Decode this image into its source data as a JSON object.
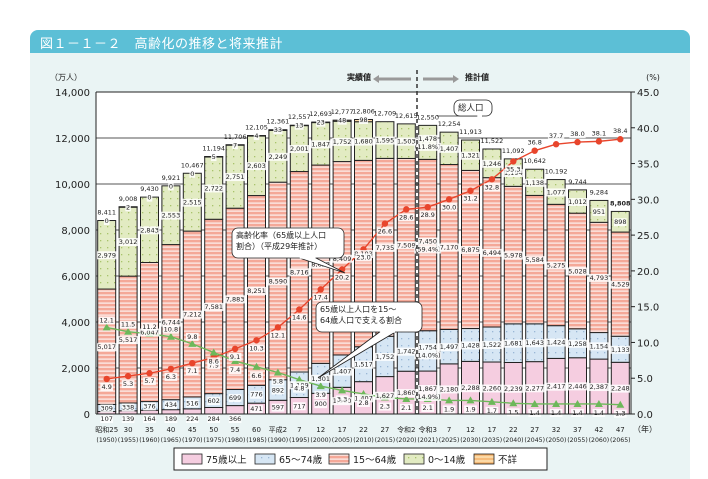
{
  "figure": {
    "title": "図１－１－２　高齢化の推移と将来推計"
  },
  "chart_data": {
    "type": "bar",
    "title": "図１－１－２　高齢化の推移と将来推計",
    "ylabel_left": "（万人）",
    "ylabel_right": "(%)",
    "xlabel_unit": "（年）",
    "ylim_left": [
      0,
      14000
    ],
    "ylim_right": [
      0,
      45
    ],
    "yticks_left": [
      "0",
      "2,000",
      "4,000",
      "6,000",
      "8,000",
      "10,000",
      "12,000",
      "14,000"
    ],
    "yticks_right": [
      "0.0",
      "5.0",
      "10.0",
      "15.0",
      "20.0",
      "25.0",
      "30.0",
      "35.0",
      "40.0",
      "45.0"
    ],
    "grid": true,
    "legend_position": "bottom",
    "categories": [
      "昭和25",
      "30",
      "35",
      "40",
      "45",
      "50",
      "55",
      "60",
      "平成2",
      "7",
      "12",
      "17",
      "22",
      "27",
      "令和2",
      "令和3",
      "7",
      "12",
      "17",
      "22",
      "27",
      "32",
      "37",
      "42",
      "47"
    ],
    "category_years": [
      "(1950)",
      "(1955)",
      "(1960)",
      "(1965)",
      "(1970)",
      "(1975)",
      "(1980)",
      "(1985)",
      "(1990)",
      "(1995)",
      "(2000)",
      "(2005)",
      "(2010)",
      "(2015)",
      "(2020)",
      "(2021)",
      "(2025)",
      "(2030)",
      "(2035)",
      "(2040)",
      "(2045)",
      "(2050)",
      "(2055)",
      "(2060)",
      "(2065)"
    ],
    "series": [
      {
        "name": "75歳以上",
        "type": "bar",
        "color": "#f5cde0",
        "values": [
          107,
          139,
          164,
          189,
          224,
          284,
          366,
          471,
          597,
          717,
          900,
          1160,
          1407,
          1627,
          1860,
          1867,
          2180,
          2288,
          2260,
          2239,
          2277,
          2417,
          2446,
          2387,
          2248
        ]
      },
      {
        "name": "65〜74歳",
        "type": "bar",
        "color": "#d6e6f4",
        "values": [
          309,
          338,
          376,
          434,
          516,
          602,
          699,
          776,
          892,
          1109,
          1301,
          1407,
          1517,
          1752,
          1742,
          1754,
          1497,
          1428,
          1522,
          1681,
          1643,
          1424,
          1258,
          1154,
          1133
        ]
      },
      {
        "name": "15〜64歳",
        "type": "bar",
        "color": "#f4a898",
        "values": [
          5017,
          5517,
          6047,
          6744,
          7212,
          7581,
          7883,
          8251,
          8590,
          8716,
          8622,
          8409,
          8103,
          7735,
          7509,
          7450,
          7170,
          6875,
          6494,
          5978,
          5584,
          5275,
          5028,
          4793,
          4529
        ]
      },
      {
        "name": "0〜14歳",
        "type": "bar",
        "color": "#e2ebc2",
        "values": [
          2979,
          3012,
          2843,
          2553,
          2515,
          2722,
          2751,
          2603,
          2249,
          2001,
          1847,
          1752,
          1680,
          1595,
          1503,
          1478,
          1407,
          1321,
          1246,
          1194,
          1138,
          1077,
          1012,
          951,
          898
        ]
      },
      {
        "name": "不詳",
        "type": "bar",
        "color": "#fbd9a6",
        "values": [
          0,
          2,
          0,
          0,
          0,
          5,
          7,
          4,
          33,
          13,
          23,
          48,
          98,
          0,
          0,
          0,
          0,
          0,
          0,
          0,
          0,
          0,
          0,
          0,
          0
        ]
      },
      {
        "name": "高齢化率（65歳以上人口割合）（平成29年推計）",
        "type": "line",
        "axis": "right",
        "color": "#e8452c",
        "marker": "circle",
        "values": [
          4.9,
          5.3,
          5.7,
          6.3,
          7.1,
          7.9,
          9.1,
          10.3,
          12.1,
          14.6,
          17.4,
          20.2,
          23.0,
          26.6,
          28.6,
          28.9,
          30.0,
          31.2,
          32.8,
          35.3,
          36.8,
          37.7,
          38.0,
          38.1,
          38.4
        ]
      },
      {
        "name": "65歳以上人口を15〜64歳人口で支える割合",
        "type": "line",
        "axis": "right",
        "color": "#6db85a",
        "marker": "triangle",
        "values": [
          12.1,
          11.5,
          11.2,
          10.8,
          9.8,
          8.6,
          7.4,
          6.6,
          5.8,
          4.8,
          3.9,
          3.3,
          2.8,
          2.3,
          2.1,
          2.1,
          1.9,
          1.9,
          1.7,
          1.5,
          1.4,
          1.4,
          1.4,
          1.4,
          1.3
        ]
      }
    ],
    "totals": [
      "8,411",
      "9,008",
      "9,430",
      "9,921",
      "10,467",
      "11,194",
      "11,706",
      "12,105",
      "12,361",
      "12,557",
      "12,693",
      "12,777",
      "12,806",
      "12,709",
      "12,615",
      "12,550",
      "12,254",
      "11,913",
      "11,522",
      "11,092",
      "10,642",
      "10,192",
      "9,744",
      "9,284",
      "8,808"
    ],
    "labels": {
      "u75": [
        "107",
        "139",
        "164",
        "189",
        "224",
        "284",
        "366",
        "471",
        "597",
        "717",
        "900",
        "1,160",
        "1,407",
        "1,627",
        "1,860",
        "1,867\n(14.9%)",
        "2,180",
        "2,288",
        "2,260",
        "2,239",
        "2,277",
        "2,417",
        "2,446",
        "2,387",
        "2,248"
      ],
      "y6574": [
        "309",
        "338",
        "376",
        "434",
        "516",
        "602",
        "699",
        "776",
        "892",
        "1,109",
        "1,301",
        "1,407",
        "1,517",
        "1,752",
        "1,742",
        "1,754\n(14.0%)",
        "1,497",
        "1,428",
        "1,522",
        "1,681",
        "1,643",
        "1,424",
        "1,258",
        "1,154",
        "1,133"
      ],
      "y1564": [
        "5,017",
        "5,517",
        "6,047",
        "6,744",
        "7,212",
        "7,581",
        "7,883",
        "8,251",
        "8,590",
        "8,716",
        "8,622",
        "8,409",
        "8,103",
        "7,735",
        "7,509",
        "7,450\n(59.4%)",
        "7,170",
        "6,875",
        "6,494",
        "5,978",
        "5,584",
        "5,275",
        "5,028",
        "4,793",
        "4,529"
      ],
      "y014": [
        "2,979",
        "3,012",
        "2,843",
        "2,553",
        "2,515",
        "2,722",
        "2,751",
        "2,603",
        "2,249",
        "2,001",
        "1,847",
        "1,752",
        "1,680",
        "1,595",
        "1,503",
        "1,478\n(11.8%)",
        "1,407",
        "1,321",
        "1,246",
        "1,194",
        "1,138",
        "1,077",
        "1,012",
        "951",
        "898"
      ],
      "unknown": [
        "0",
        "2",
        "0",
        "0",
        "0",
        "5",
        "7",
        "4",
        "33",
        "13",
        "23",
        "48",
        "98",
        "",
        "",
        "",
        "",
        "",
        "",
        "",
        "",
        "",
        "",
        "",
        ""
      ]
    },
    "annotations": {
      "actual": "実績値",
      "projection": "推計値",
      "total_population": "総人口",
      "aging_rate": "高齢化率（65歳以上人口\n割合）（平成29年推計）",
      "support_ratio": "65歳以上人口を15〜\n64歳人口で支える割合"
    },
    "legend": [
      "75歳以上",
      "65〜74歳",
      "15〜64歳",
      "0〜14歳",
      "不詳"
    ]
  }
}
